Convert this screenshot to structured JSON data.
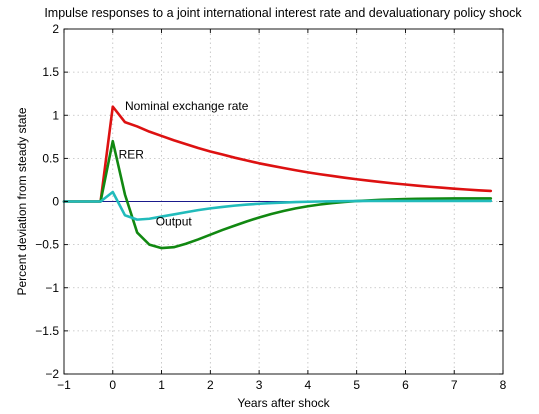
{
  "chart_data": {
    "type": "line",
    "title": "Impulse responses to a joint international interest rate and devaluationary policy shock",
    "xlabel": "Years after shock",
    "ylabel": "Percent deviation from steady state",
    "xlim": [
      -1,
      8
    ],
    "ylim": [
      -2,
      2
    ],
    "xticks": [
      -1,
      0,
      1,
      2,
      3,
      4,
      5,
      6,
      7,
      8
    ],
    "yticks": [
      -2,
      -1.5,
      -1,
      -0.5,
      0,
      0.5,
      1,
      1.5,
      2
    ],
    "xtick_labels": [
      "−1",
      "0",
      "1",
      "2",
      "3",
      "4",
      "5",
      "6",
      "7",
      "8"
    ],
    "ytick_labels": [
      "−2",
      "−1.5",
      "−1",
      "−0.5",
      "0",
      "0.5",
      "1",
      "1.5",
      "2"
    ],
    "grid": true,
    "colors": {
      "nominal": "#dd1111",
      "rer": "#118811",
      "output": "#22bbbb",
      "zero": "#1a1a8c"
    },
    "reference_line": {
      "y": 0,
      "x": [
        -1,
        7.75
      ]
    },
    "series": [
      {
        "name": "Nominal exchange rate",
        "color": "#dd1111",
        "x": [
          -1,
          -0.75,
          -0.5,
          -0.25,
          0,
          0.25,
          0.5,
          0.75,
          1,
          1.25,
          1.5,
          1.75,
          2,
          2.25,
          2.5,
          2.75,
          3,
          3.25,
          3.5,
          3.75,
          4,
          4.25,
          4.5,
          4.75,
          5,
          5.25,
          5.5,
          5.75,
          6,
          6.25,
          6.5,
          6.75,
          7,
          7.25,
          7.5,
          7.75
        ],
        "y": [
          0,
          0,
          0,
          0,
          1.1,
          0.92,
          0.87,
          0.81,
          0.76,
          0.71,
          0.665,
          0.62,
          0.58,
          0.545,
          0.508,
          0.475,
          0.443,
          0.415,
          0.388,
          0.362,
          0.338,
          0.316,
          0.296,
          0.276,
          0.258,
          0.241,
          0.225,
          0.21,
          0.197,
          0.183,
          0.171,
          0.16,
          0.149,
          0.139,
          0.13,
          0.122
        ]
      },
      {
        "name": "RER",
        "color": "#118811",
        "x": [
          -1,
          -0.75,
          -0.5,
          -0.25,
          0,
          0.25,
          0.5,
          0.75,
          1,
          1.25,
          1.5,
          1.75,
          2,
          2.25,
          2.5,
          2.75,
          3,
          3.25,
          3.5,
          3.75,
          4,
          4.25,
          4.5,
          4.75,
          5,
          5.25,
          5.5,
          5.75,
          6,
          6.25,
          6.5,
          6.75,
          7,
          7.25,
          7.5,
          7.75
        ],
        "y": [
          0,
          0,
          0,
          0,
          0.7,
          0.08,
          -0.36,
          -0.5,
          -0.54,
          -0.53,
          -0.49,
          -0.44,
          -0.385,
          -0.33,
          -0.28,
          -0.23,
          -0.185,
          -0.145,
          -0.11,
          -0.08,
          -0.055,
          -0.035,
          -0.018,
          -0.005,
          0.005,
          0.013,
          0.019,
          0.024,
          0.028,
          0.031,
          0.033,
          0.034,
          0.035,
          0.036,
          0.036,
          0.036
        ]
      },
      {
        "name": "Output",
        "color": "#22bbbb",
        "x": [
          -1,
          -0.75,
          -0.5,
          -0.25,
          0,
          0.25,
          0.5,
          0.75,
          1,
          1.25,
          1.5,
          1.75,
          2,
          2.25,
          2.5,
          2.75,
          3,
          3.25,
          3.5,
          3.75,
          4,
          4.25,
          4.5,
          4.75,
          5,
          5.25,
          5.5,
          5.75,
          6,
          6.25,
          6.5,
          6.75,
          7,
          7.25,
          7.5,
          7.75
        ],
        "y": [
          0,
          0,
          0,
          0,
          0.11,
          -0.16,
          -0.21,
          -0.2,
          -0.175,
          -0.15,
          -0.125,
          -0.1,
          -0.08,
          -0.063,
          -0.048,
          -0.036,
          -0.026,
          -0.018,
          -0.012,
          -0.007,
          -0.003,
          0.0,
          0.002,
          0.004,
          0.005,
          0.006,
          0.007,
          0.007,
          0.007,
          0.007,
          0.007,
          0.007,
          0.007,
          0.007,
          0.007,
          0.007
        ]
      }
    ],
    "annotations": [
      {
        "text": "Nominal exchange rate",
        "x": 0.25,
        "y": 1.06
      },
      {
        "text": "RER",
        "x": 0.12,
        "y": 0.5
      },
      {
        "text": "Output",
        "x": 0.88,
        "y": -0.28
      }
    ]
  }
}
